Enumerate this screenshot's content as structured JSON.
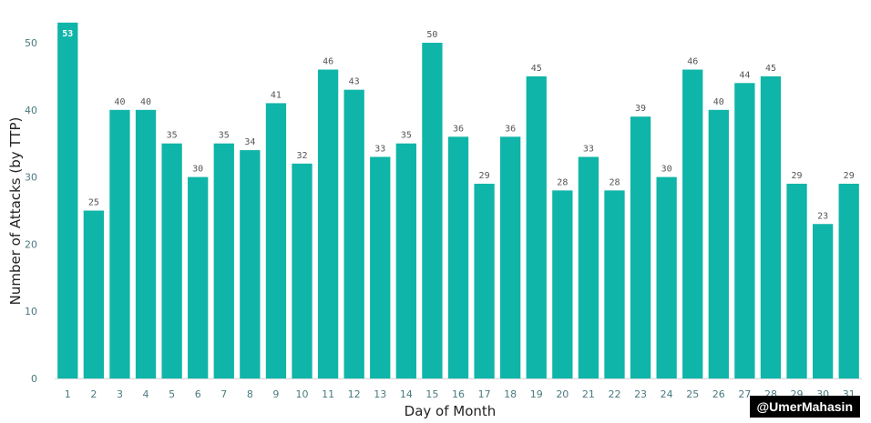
{
  "chart_data": {
    "type": "bar",
    "title": "",
    "xlabel": "Day of Month",
    "ylabel": "Number of Attacks (by TTP)",
    "ylim": [
      0,
      55
    ],
    "yticks": [
      0,
      10,
      20,
      30,
      40,
      50
    ],
    "grid": false,
    "categories": [
      "1",
      "2",
      "3",
      "4",
      "5",
      "6",
      "7",
      "8",
      "9",
      "10",
      "11",
      "12",
      "13",
      "14",
      "15",
      "16",
      "17",
      "18",
      "19",
      "20",
      "21",
      "22",
      "23",
      "24",
      "25",
      "26",
      "27",
      "28",
      "29",
      "30",
      "31"
    ],
    "values": [
      53,
      25,
      40,
      40,
      35,
      30,
      35,
      34,
      41,
      32,
      46,
      43,
      33,
      35,
      50,
      36,
      29,
      36,
      45,
      28,
      33,
      28,
      39,
      30,
      46,
      40,
      44,
      45,
      29,
      23,
      29
    ],
    "bar_color": "#0fb5a8"
  },
  "watermark": "@UmerMahasin"
}
